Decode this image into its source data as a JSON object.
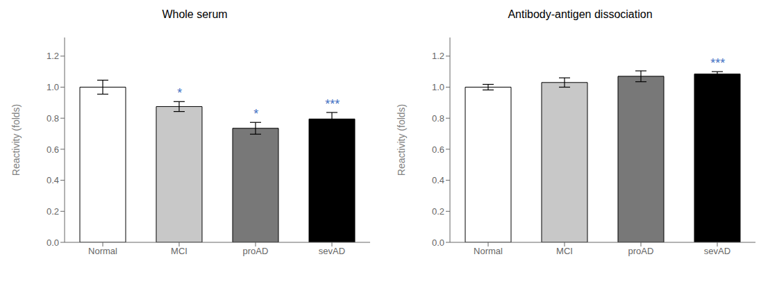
{
  "chart_data": [
    {
      "type": "bar",
      "title": "Whole serum",
      "y_label": "Reactivity (folds)",
      "categories": [
        "Normal",
        "MCI",
        "proAD",
        "sevAD"
      ],
      "values": [
        1.0,
        0.875,
        0.735,
        0.795
      ],
      "errors": [
        0.045,
        0.032,
        0.038,
        0.042
      ],
      "colors": [
        "#ffffff",
        "#c8c8c8",
        "#787878",
        "#000000"
      ],
      "annotations": [
        {
          "category": "MCI",
          "text": "*",
          "color": "#4472c4"
        },
        {
          "category": "proAD",
          "text": "*",
          "color": "#4472c4"
        },
        {
          "category": "sevAD",
          "text": "***",
          "color": "#4472c4"
        }
      ],
      "ylim": [
        0.0,
        1.32
      ],
      "yticks": [
        {
          "value": 0,
          "label": "0.0"
        },
        0.2,
        0.4,
        0.6,
        0.8,
        {
          "value": 1,
          "label": "1.0"
        },
        1.2
      ],
      "grid": false
    },
    {
      "type": "bar",
      "title": "Antibody-antigen dissociation",
      "y_label": "Reactivity (folds)",
      "categories": [
        "Normal",
        "MCI",
        "proAD",
        "sevAD"
      ],
      "values": [
        1.0,
        1.03,
        1.07,
        1.085
      ],
      "errors": [
        0.018,
        0.03,
        0.035,
        0.015
      ],
      "colors": [
        "#ffffff",
        "#c8c8c8",
        "#787878",
        "#000000"
      ],
      "annotations": [
        {
          "category": "sevAD",
          "text": "***",
          "color": "#4472c4"
        }
      ],
      "ylim": [
        0.0,
        1.32
      ],
      "yticks": [
        {
          "value": 0,
          "label": "0.0"
        },
        0.2,
        0.4,
        0.6,
        0.8,
        {
          "value": 1,
          "label": "1.0"
        },
        1.2
      ],
      "grid": false
    }
  ]
}
